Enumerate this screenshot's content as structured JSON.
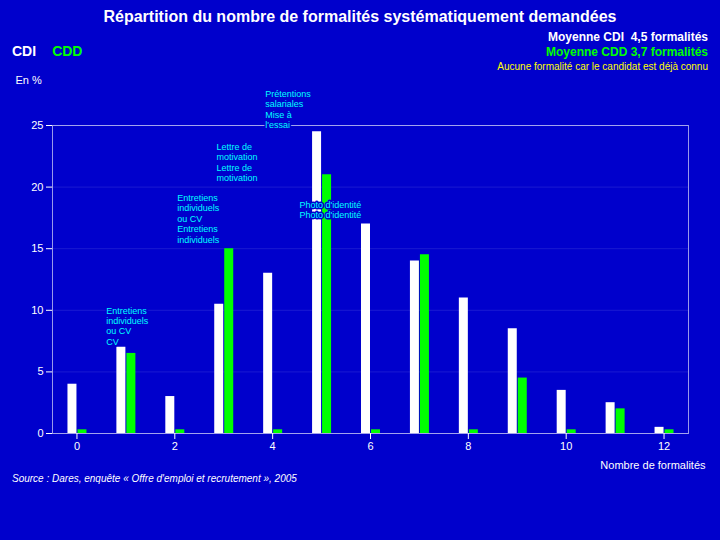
{
  "chart_data": {
    "type": "bar",
    "title": "Répartition du nombre de formalités systématiquement demandées",
    "subtitle": [
      "Moyenne CDI  4,5 formalités",
      "Moyenne CDD 3,7 formalités"
    ],
    "xlabel": "Nombre de formalités",
    "ylabel": "En %",
    "x": [
      0,
      1,
      2,
      3,
      4,
      5,
      6,
      7,
      8,
      9,
      10,
      11,
      12
    ],
    "series": [
      {
        "name": "CDI",
        "color": "#FFFFFF",
        "values": [
          4.0,
          7.0,
          3.0,
          10.5,
          13.0,
          24.5,
          17.0,
          14.0,
          11.0,
          8.5,
          3.5,
          2.5,
          0.5
        ]
      },
      {
        "name": "CDD",
        "color": "#00FF00",
        "values": [
          0.3,
          6.5,
          0.3,
          15.0,
          0.3,
          21.0,
          0.3,
          14.5,
          0.3,
          4.5,
          0.3,
          2.0,
          0.3
        ]
      }
    ],
    "xlim": [
      -0.5,
      12.5
    ],
    "xticks": [
      0,
      2,
      4,
      6,
      8,
      10,
      12
    ],
    "ylim": [
      0,
      25
    ],
    "yticks": [
      0,
      5,
      10,
      15,
      20,
      25
    ],
    "grid": true,
    "note": {
      "text": "Aucune formalité car le candidat est déjà connu",
      "color": "#FFFF00"
    },
    "annotations": [
      {
        "x": 0.6,
        "y": 7.2,
        "text": "Entretiens\nindividuels\nou CV\nCV",
        "color": "#00FFFF"
      },
      {
        "x": 2.05,
        "y": 15.5,
        "text": "Entretiens\nindividuels\nou CV\nEntretiens\nindividuels",
        "color": "#00FFFF"
      },
      {
        "x": 2.85,
        "y": 20.5,
        "text": "Lettre de\nmotivation\nLettre de\nmotivation",
        "color": "#00FFFF"
      },
      {
        "x": 3.85,
        "y": 24.8,
        "text": "Prétentions\nsalariales\nMise à\nl'essai",
        "color": "#00FFFF"
      },
      {
        "x": 4.55,
        "y": 17.5,
        "text": "Photo d'identité\nPhoto d'identité",
        "color": "#00FFFF"
      }
    ],
    "source": "Source : Dares, enquête « Offre d'emploi et recrutement », 2005"
  }
}
